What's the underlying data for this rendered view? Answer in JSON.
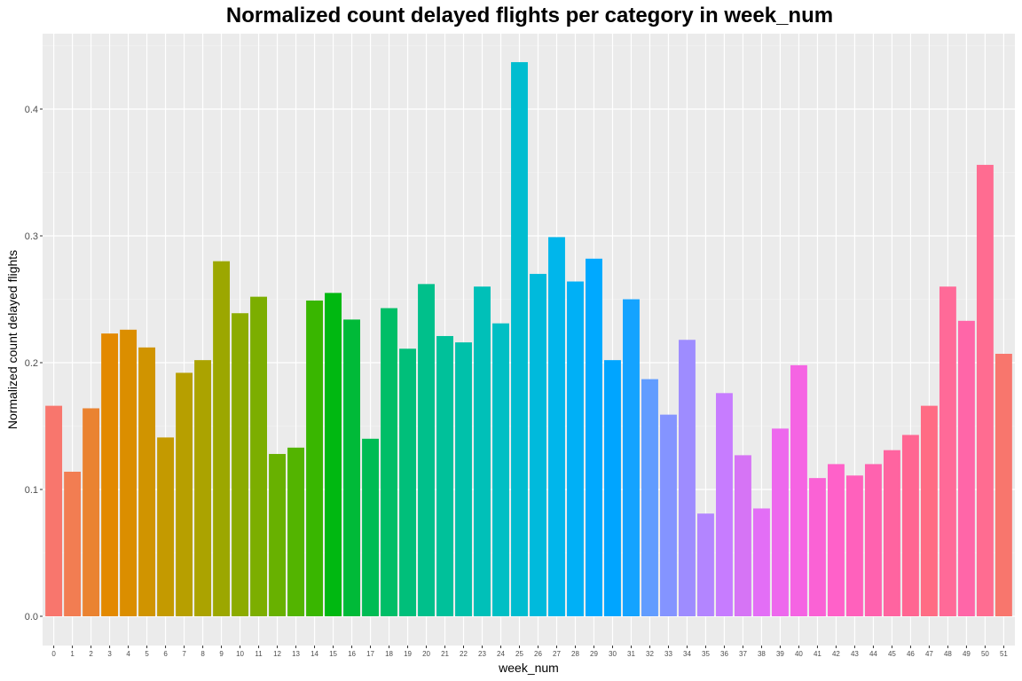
{
  "chart_data": {
    "type": "bar",
    "title": "Normalized count delayed flights per category in week_num",
    "xlabel": "week_num",
    "ylabel": "Normalized count delayed flights",
    "categories": [
      "0",
      "1",
      "2",
      "3",
      "4",
      "5",
      "6",
      "7",
      "8",
      "9",
      "10",
      "11",
      "12",
      "13",
      "14",
      "15",
      "16",
      "17",
      "18",
      "19",
      "20",
      "21",
      "22",
      "23",
      "24",
      "25",
      "26",
      "27",
      "28",
      "29",
      "30",
      "31",
      "32",
      "33",
      "34",
      "35",
      "36",
      "37",
      "38",
      "39",
      "40",
      "41",
      "42",
      "43",
      "44",
      "45",
      "46",
      "47",
      "48",
      "49",
      "50",
      "51"
    ],
    "values": [
      0.166,
      0.114,
      0.164,
      0.223,
      0.226,
      0.212,
      0.141,
      0.192,
      0.202,
      0.28,
      0.239,
      0.252,
      0.128,
      0.133,
      0.249,
      0.255,
      0.234,
      0.14,
      0.243,
      0.211,
      0.262,
      0.221,
      0.216,
      0.26,
      0.231,
      0.437,
      0.27,
      0.299,
      0.264,
      0.282,
      0.202,
      0.25,
      0.187,
      0.159,
      0.218,
      0.081,
      0.176,
      0.127,
      0.085,
      0.148,
      0.198,
      0.109,
      0.12,
      0.111,
      0.12,
      0.131,
      0.143,
      0.166,
      0.26,
      0.233,
      0.356,
      0.207
    ],
    "colors": [
      "#F8766D",
      "#F27D52",
      "#EA8331",
      "#E38900",
      "#DB8E00",
      "#D09400",
      "#C49A00",
      "#B79F00",
      "#ABA300",
      "#9CA700",
      "#8CAB00",
      "#7CAE00",
      "#68B100",
      "#53B400",
      "#39B600",
      "#00B811",
      "#00BA38",
      "#00BC54",
      "#00BE67",
      "#00BF7A",
      "#00C08B",
      "#00C19A",
      "#00C1AA",
      "#00C0B8",
      "#00BFC4",
      "#00BDD0",
      "#00BADC",
      "#00B6EB",
      "#00B0F6",
      "#00A9FF",
      "#00A5FF",
      "#14A3FF",
      "#619CFF",
      "#8494FF",
      "#9E8CFF",
      "#B385FF",
      "#C77CFF",
      "#D674F5",
      "#E36EF6",
      "#ED68ED",
      "#F564E3",
      "#FA62D5",
      "#FF61C9",
      "#FF61BC",
      "#FF62AF",
      "#FF64A0",
      "#FF6692",
      "#FF6C84",
      "#FF6A98",
      "#FF66A8",
      "#FF6C91",
      "#F8766D"
    ],
    "y_ticks": [
      "0.0",
      "0.1",
      "0.2",
      "0.3",
      "0.4"
    ],
    "ylim": [
      -0.02,
      0.46
    ],
    "grid": true,
    "legend": "none"
  }
}
